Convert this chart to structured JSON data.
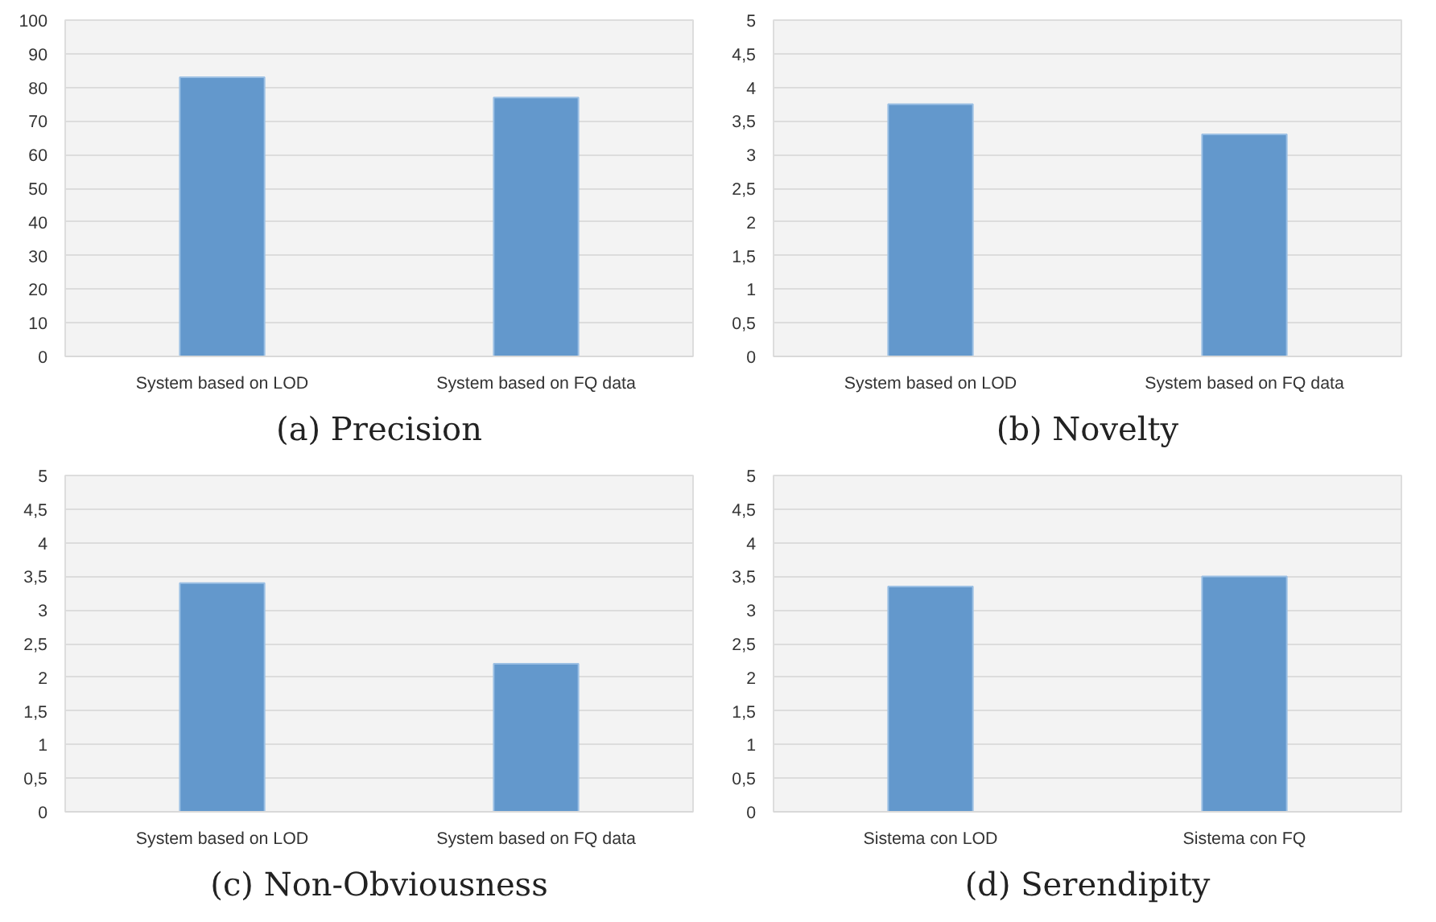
{
  "chart_data": [
    {
      "type": "bar",
      "title": "(a) Precision",
      "categories": [
        "System based on LOD",
        "System based on FQ data"
      ],
      "values": [
        83,
        77
      ],
      "color": "#6398cc",
      "ylim": [
        0,
        100
      ],
      "yticks": [
        0,
        10,
        20,
        30,
        40,
        50,
        60,
        70,
        80,
        90,
        100
      ],
      "grid": "y"
    },
    {
      "type": "bar",
      "title": "(b) Novelty",
      "categories": [
        "System based on LOD",
        "System based on FQ data"
      ],
      "values": [
        3.75,
        3.3
      ],
      "color": "#6398cc",
      "ylim": [
        0,
        5
      ],
      "yticks": [
        0,
        {
          "value": 0.5,
          "label": "0,5"
        },
        1,
        {
          "value": 1.5,
          "label": "1,5"
        },
        2,
        {
          "value": 2.5,
          "label": "2,5"
        },
        3,
        {
          "value": 3.5,
          "label": "3,5"
        },
        4,
        {
          "value": 4.5,
          "label": "4,5"
        },
        5
      ],
      "grid": "y"
    },
    {
      "type": "bar",
      "title": "(c) Non-Obviousness",
      "categories": [
        "System based on LOD",
        "System based on FQ data"
      ],
      "values": [
        3.4,
        2.2
      ],
      "color": "#6398cc",
      "ylim": [
        0,
        5
      ],
      "yticks": [
        0,
        {
          "value": 0.5,
          "label": "0,5"
        },
        1,
        {
          "value": 1.5,
          "label": "1,5"
        },
        2,
        {
          "value": 2.5,
          "label": "2,5"
        },
        3,
        {
          "value": 3.5,
          "label": "3,5"
        },
        4,
        {
          "value": 4.5,
          "label": "4,5"
        },
        5
      ],
      "grid": "y"
    },
    {
      "type": "bar",
      "title": "(d) Serendipity",
      "categories": [
        "Sistema con LOD",
        "Sistema con FQ"
      ],
      "values": [
        3.35,
        3.5
      ],
      "color": "#6398cc",
      "ylim": [
        0,
        5
      ],
      "yticks": [
        0,
        {
          "value": 0.5,
          "label": "0,5"
        },
        1,
        {
          "value": 1.5,
          "label": "1,5"
        },
        2,
        {
          "value": 2.5,
          "label": "2,5"
        },
        3,
        {
          "value": 3.5,
          "label": "3,5"
        },
        4,
        {
          "value": 4.5,
          "label": "4,5"
        },
        5
      ],
      "grid": "y"
    }
  ]
}
